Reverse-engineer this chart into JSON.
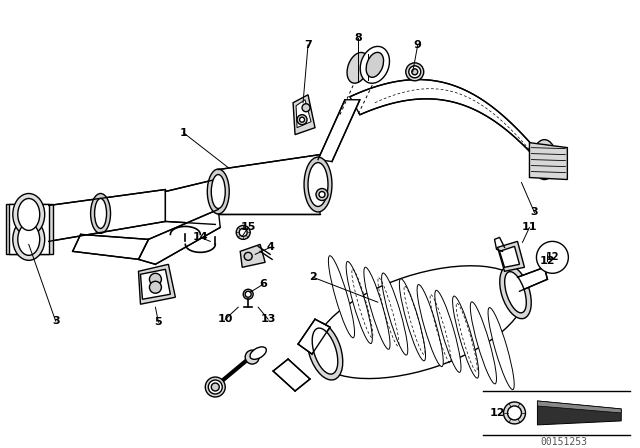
{
  "background_color": "#ffffff",
  "line_color": "#000000",
  "image_id": "00151253",
  "lw": 1.0,
  "labels": {
    "1": [
      183,
      133,
      228,
      168
    ],
    "2": [
      313,
      278,
      378,
      303
    ],
    "3L": [
      55,
      322,
      28,
      245
    ],
    "3R": [
      535,
      213,
      522,
      183
    ],
    "4": [
      270,
      248,
      255,
      255
    ],
    "5": [
      158,
      323,
      155,
      308
    ],
    "6": [
      263,
      285,
      250,
      293
    ],
    "7": [
      308,
      45,
      303,
      103
    ],
    "8": [
      358,
      38,
      358,
      70
    ],
    "9": [
      418,
      45,
      413,
      72
    ],
    "10": [
      225,
      320,
      238,
      308
    ],
    "11": [
      530,
      228,
      523,
      243
    ],
    "12C": [
      548,
      262,
      548,
      255
    ],
    "13": [
      268,
      320,
      258,
      308
    ],
    "14": [
      200,
      238,
      210,
      242
    ],
    "15": [
      248,
      228,
      242,
      237
    ]
  }
}
